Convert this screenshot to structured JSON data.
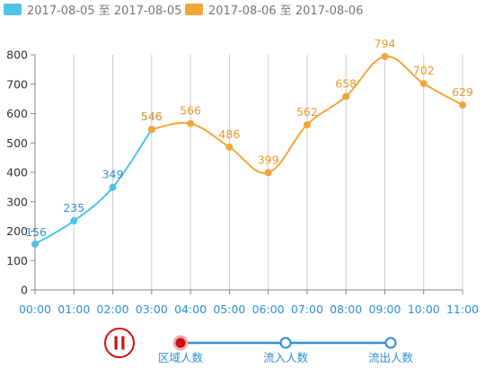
{
  "legend": [
    {
      "name": "2017-08-05 至 2017-08-05",
      "color": "#4fc3e8"
    },
    {
      "name": "2017-08-06 至 2017-08-06",
      "color": "#f0a63a"
    }
  ],
  "chart_data": {
    "type": "line",
    "title": "",
    "xlabel": "",
    "ylabel": "",
    "x": [
      "00:00",
      "01:00",
      "02:00",
      "03:00",
      "04:00",
      "05:00",
      "06:00",
      "07:00",
      "08:00",
      "09:00",
      "10:00",
      "11:00"
    ],
    "ylim": [
      0,
      800
    ],
    "yticks": [
      0,
      100,
      200,
      300,
      400,
      500,
      600,
      700,
      800
    ],
    "grid": "vertical",
    "legend_position": "top-left",
    "smooth": true,
    "series": [
      {
        "name": "2017-08-05 至 2017-08-05",
        "color": "#4fc3e8",
        "label_color": "#2f8fd8",
        "values": [
          156,
          235,
          349,
          546,
          null,
          null,
          null,
          null,
          null,
          null,
          null,
          null
        ]
      },
      {
        "name": "2017-08-06 至 2017-08-06",
        "color": "#f0a63a",
        "label_color": "#e59a2c",
        "values": [
          null,
          null,
          null,
          546,
          566,
          486,
          399,
          562,
          658,
          794,
          702,
          629
        ]
      }
    ]
  },
  "timeline": {
    "state": "playing",
    "items": [
      "区域人数",
      "流入人数",
      "流出人数"
    ],
    "current_index": 0,
    "colors": {
      "line": "#2f8fd8",
      "active": "#cc1111",
      "play": "#cc1111"
    }
  }
}
